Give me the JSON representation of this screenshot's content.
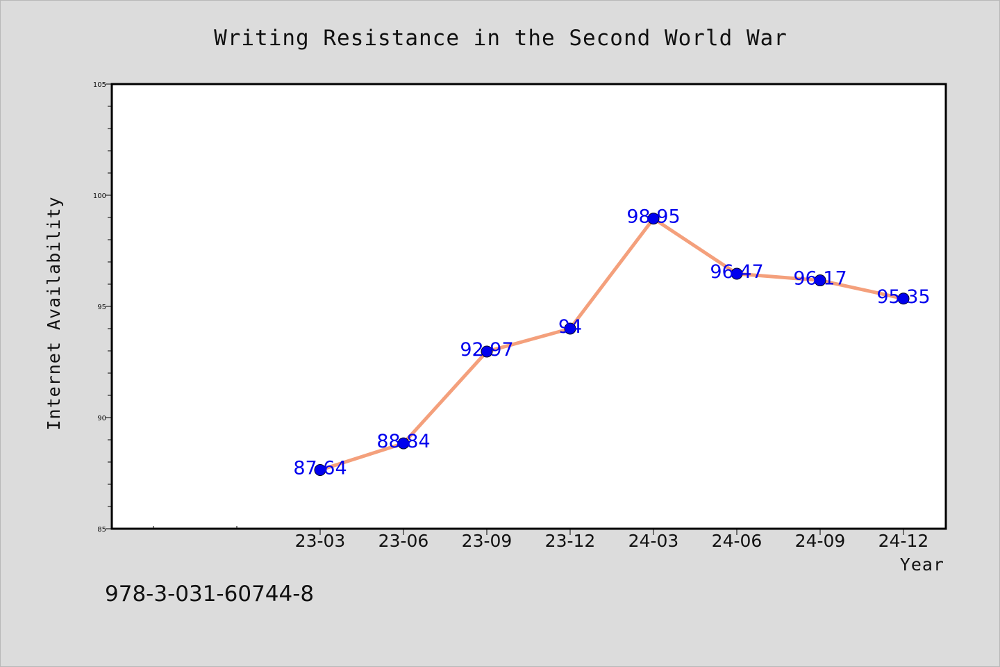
{
  "chart_data": {
    "type": "line",
    "title": "Writing Resistance in the Second World War",
    "xlabel": "Year",
    "ylabel": "Internet Availability",
    "categories": [
      "23-03",
      "23-06",
      "23-09",
      "23-12",
      "24-03",
      "24-06",
      "24-09",
      "24-12"
    ],
    "values": [
      87.64,
      88.84,
      92.97,
      94,
      98.95,
      96.47,
      96.17,
      95.35
    ],
    "data_labels": [
      "87.64",
      "88.84",
      "92.97",
      "94",
      "98.95",
      "96.47",
      "96.17",
      "95.35"
    ],
    "ylim": [
      85,
      105
    ],
    "yticks": [
      "85",
      "90",
      "95",
      "100",
      "105"
    ],
    "grid": false,
    "legend": "none",
    "line_color": "#f4a07c",
    "marker_color": "#0000ee"
  },
  "footer": {
    "isbn": "978-3-031-60744-8"
  }
}
